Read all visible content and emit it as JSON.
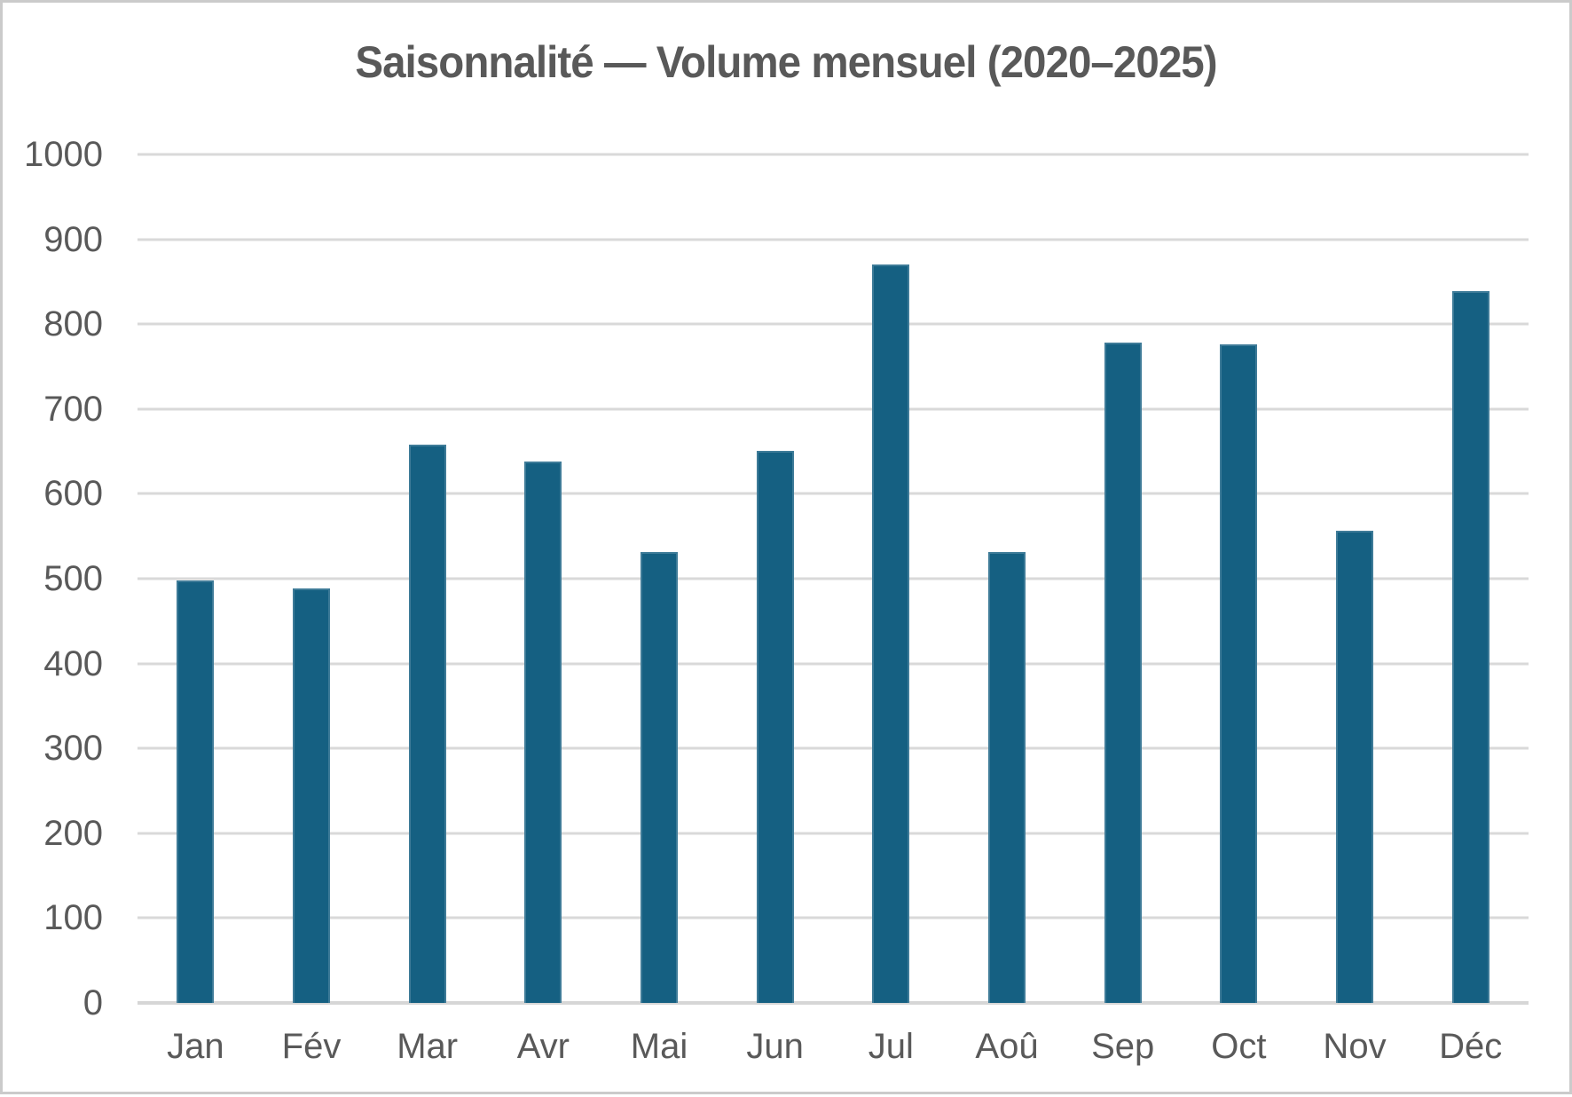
{
  "chart_data": {
    "type": "bar",
    "title": "Saisonnalité — Volume mensuel (2020–2025)",
    "categories": [
      "Jan",
      "Fév",
      "Mar",
      "Avr",
      "Mai",
      "Jun",
      "Jul",
      "Aoû",
      "Sep",
      "Oct",
      "Nov",
      "Déc"
    ],
    "values": [
      498,
      488,
      658,
      638,
      531,
      651,
      870,
      531,
      778,
      776,
      557,
      839
    ],
    "xlabel": "",
    "ylabel": "",
    "ylim": [
      0,
      1000
    ],
    "yticks": [
      0,
      100,
      200,
      300,
      400,
      500,
      600,
      700,
      800,
      900,
      1000
    ],
    "grid": true,
    "legend": false,
    "colors": {
      "bar_fill": "#156082",
      "bar_border": "#3e7b98",
      "gridline": "#d9d9d9",
      "axis_line": "#d6d6d6",
      "tick_text": "#595959",
      "title_text": "#595959",
      "background": "#ffffff",
      "frame_border": "#cbcbcb"
    }
  }
}
